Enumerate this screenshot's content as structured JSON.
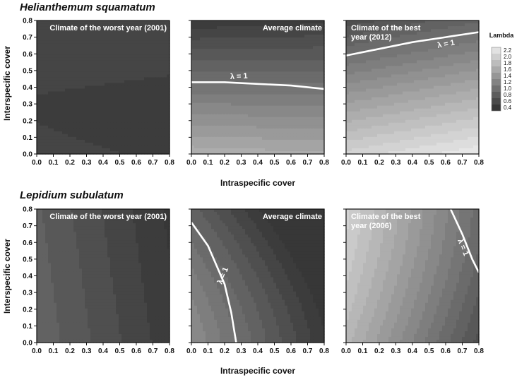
{
  "figure": {
    "y_label": "Interspecific cover",
    "x_label": "Intraspecific cover",
    "axis_ticks": [
      "0.0",
      "0.1",
      "0.2",
      "0.3",
      "0.4",
      "0.5",
      "0.6",
      "0.7",
      "0.8"
    ]
  },
  "legend": {
    "title": "Lambda",
    "levels": [
      "2.2",
      "2.0",
      "1.8",
      "1.6",
      "1.4",
      "1.2",
      "1.0",
      "0.8",
      "0.6",
      "0.4"
    ]
  },
  "chart_data": [
    {
      "type": "heatmap",
      "species": "Helianthemum squamatum",
      "panel_title": "Climate of the worst year (2001)",
      "xlabel": "Intraspecific cover",
      "ylabel": "Interspecific cover",
      "xlim": [
        0,
        0.8
      ],
      "ylim": [
        0,
        0.8
      ],
      "lambda_range": [
        0.4,
        0.7
      ],
      "contour_lambda_1": null,
      "lambda_label": ""
    },
    {
      "type": "heatmap",
      "species": "Helianthemum squamatum",
      "panel_title": "Average climate",
      "xlabel": "Intraspecific cover",
      "ylabel": "Interspecific cover",
      "xlim": [
        0,
        0.8
      ],
      "ylim": [
        0,
        0.8
      ],
      "lambda_range": [
        0.6,
        1.6
      ],
      "contour_lambda_1": {
        "x": [
          0.0,
          0.2,
          0.4,
          0.6,
          0.8
        ],
        "y": [
          0.43,
          0.43,
          0.42,
          0.41,
          0.39
        ]
      },
      "lambda_label": "λ = 1"
    },
    {
      "type": "heatmap",
      "species": "Helianthemum squamatum",
      "panel_title": "Climate of the best year (2012)",
      "xlabel": "Intraspecific cover",
      "ylabel": "Interspecific cover",
      "xlim": [
        0,
        0.8
      ],
      "ylim": [
        0,
        0.8
      ],
      "lambda_range": [
        0.9,
        2.2
      ],
      "contour_lambda_1": {
        "x": [
          0.0,
          0.2,
          0.4,
          0.6,
          0.8
        ],
        "y": [
          0.59,
          0.63,
          0.67,
          0.7,
          0.73
        ]
      },
      "lambda_label": "λ = 1"
    },
    {
      "type": "heatmap",
      "species": "Lepidium subulatum",
      "panel_title": "Climate of the worst year (2001)",
      "xlabel": "Intraspecific cover",
      "ylabel": "Interspecific cover",
      "xlim": [
        0,
        0.8
      ],
      "ylim": [
        0,
        0.8
      ],
      "lambda_range": [
        0.4,
        0.9
      ],
      "contour_lambda_1": null,
      "lambda_label": ""
    },
    {
      "type": "heatmap",
      "species": "Lepidium subulatum",
      "panel_title": "Average climate",
      "xlabel": "Intraspecific cover",
      "ylabel": "Interspecific cover",
      "xlim": [
        0,
        0.8
      ],
      "ylim": [
        0,
        0.8
      ],
      "lambda_range": [
        0.6,
        1.3
      ],
      "contour_lambda_1": {
        "x": [
          0.0,
          0.1,
          0.2,
          0.24,
          0.27
        ],
        "y": [
          0.72,
          0.58,
          0.35,
          0.18,
          0.0
        ]
      },
      "lambda_label": "λ = 1"
    },
    {
      "type": "heatmap",
      "species": "Lepidium subulatum",
      "panel_title": "Climate of the best year (2006)",
      "xlabel": "Intraspecific cover",
      "ylabel": "Interspecific cover",
      "xlim": [
        0,
        0.8
      ],
      "ylim": [
        0,
        0.8
      ],
      "lambda_range": [
        0.9,
        1.8
      ],
      "contour_lambda_1": {
        "x": [
          0.63,
          0.7,
          0.76,
          0.8
        ],
        "y": [
          0.8,
          0.65,
          0.5,
          0.42
        ]
      },
      "lambda_label": "λ = 1"
    }
  ]
}
